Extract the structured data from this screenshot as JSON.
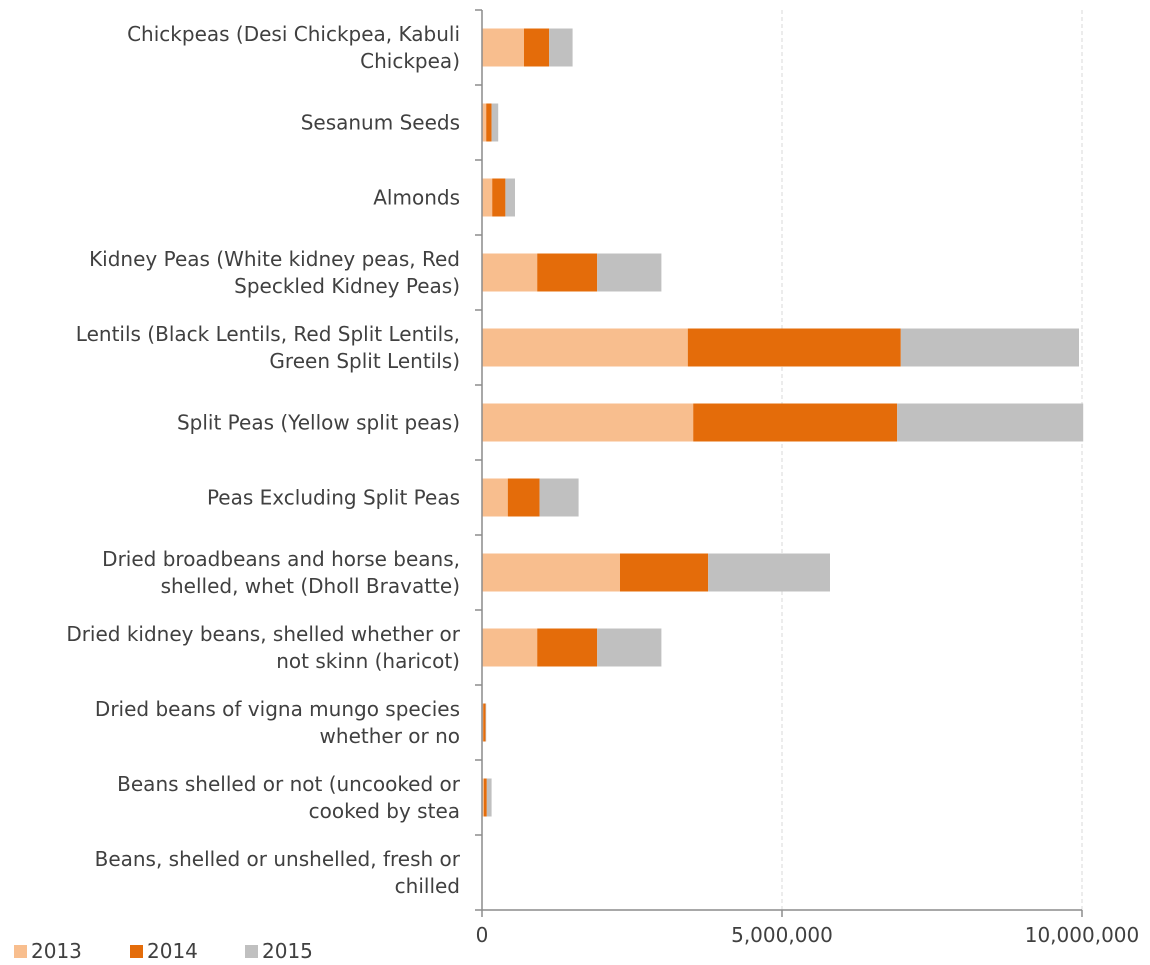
{
  "chart_data": {
    "type": "bar",
    "orientation": "horizontal",
    "stacked": true,
    "categories": [
      [
        "Chickpeas (Desi Chickpea, Kabuli",
        "Chickpea)"
      ],
      [
        "Sesanum Seeds"
      ],
      [
        "Almonds"
      ],
      [
        "Kidney Peas (White kidney peas, Red",
        "Speckled Kidney Peas)"
      ],
      [
        "Lentils (Black Lentils, Red Split Lentils,",
        "Green Split Lentils)"
      ],
      [
        "Split Peas (Yellow split peas)"
      ],
      [
        "Peas Excluding Split Peas"
      ],
      [
        "Dried  broadbeans and horse beans,",
        "shelled, whet (Dholl Bravatte)"
      ],
      [
        "Dried kidney beans, shelled whether or",
        "not skinn (haricot)"
      ],
      [
        "Dried beans of vigna mungo species",
        "whether or no"
      ],
      [
        "Beans shelled or not (uncooked or",
        "cooked by stea"
      ],
      [
        "Beans, shelled or unshelled, fresh or",
        "chilled"
      ]
    ],
    "series": [
      {
        "name": "2013",
        "color": "#F8BE8E",
        "values": [
          700000,
          70000,
          170000,
          920000,
          3430000,
          3520000,
          430000,
          2300000,
          920000,
          20000,
          30000,
          0
        ]
      },
      {
        "name": "2014",
        "color": "#E46C0A",
        "values": [
          420000,
          90000,
          220000,
          1000000,
          3550000,
          3400000,
          530000,
          1470000,
          1000000,
          40000,
          50000,
          0
        ]
      },
      {
        "name": "2015",
        "color": "#C0C0C0",
        "values": [
          390000,
          110000,
          160000,
          1070000,
          2970000,
          3100000,
          650000,
          2030000,
          1070000,
          10000,
          80000,
          0
        ]
      }
    ],
    "xlim": [
      0,
      10000000
    ],
    "x_ticks": [
      0,
      5000000,
      10000000
    ],
    "x_tick_labels": [
      "0",
      "5,000,000",
      "10,000,000"
    ],
    "grid": true,
    "legend_position": "bottom-left"
  }
}
